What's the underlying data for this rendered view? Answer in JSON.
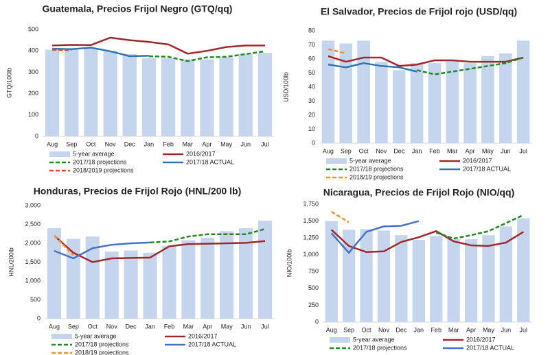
{
  "chart_data": [
    {
      "type": "bar-line",
      "title": "Guatemala, Precios Frijol Negro (GTQ/qq)",
      "y_label": "GTQ/100lb",
      "categories": [
        "Aug",
        "Sep",
        "Oct",
        "Nov",
        "Dec",
        "Jan",
        "Feb",
        "Mar",
        "Apr",
        "May",
        "Jun",
        "Jul"
      ],
      "ylim": [
        0,
        500
      ],
      "yticks": [
        0,
        100,
        200,
        300,
        400,
        500
      ],
      "grid": false,
      "series": [
        {
          "name": "5-year average",
          "kind": "bar",
          "color": "#c6d5ee",
          "values": [
            405,
            405,
            410,
            400,
            385,
            365,
            365,
            360,
            360,
            370,
            385,
            390
          ]
        },
        {
          "name": "2016/2017",
          "kind": "line",
          "color": "#a0282a",
          "values": [
            425,
            428,
            427,
            462,
            450,
            442,
            430,
            387,
            400,
            418,
            425,
            425
          ]
        },
        {
          "name": "2017/18 projections",
          "kind": "dashed",
          "color": "#1f8a1f",
          "values": [
            null,
            null,
            null,
            null,
            null,
            375,
            372,
            352,
            370,
            372,
            385,
            398
          ]
        },
        {
          "name": "2017/18 ACTUAL",
          "kind": "line",
          "color": "#2e75b6",
          "values": [
            410,
            408,
            415,
            398,
            375,
            377,
            null,
            null,
            null,
            null,
            null,
            null
          ]
        },
        {
          "name": "2018/2019 projections",
          "kind": "dashed",
          "color": "#e8462a",
          "values": [
            405,
            403,
            null,
            null,
            null,
            null,
            null,
            null,
            null,
            null,
            null,
            null
          ]
        }
      ]
    },
    {
      "type": "bar-line",
      "title": "El Salvador, Precios de Frijol rojo (USD/qq)",
      "y_label": "USD/100lb",
      "categories": [
        "Aug",
        "Sep",
        "Oct",
        "Nov",
        "Dec",
        "Jan",
        "Feb",
        "Mar",
        "Apr",
        "May",
        "Jun",
        "Jul"
      ],
      "ylim": [
        0,
        80
      ],
      "yticks": [
        0,
        10,
        20,
        30,
        40,
        50,
        60,
        70,
        80
      ],
      "grid": false,
      "series": [
        {
          "name": "5-year average",
          "kind": "bar",
          "color": "#c6d5ee",
          "values": [
            73,
            71,
            73,
            58,
            52,
            57,
            57,
            59,
            57,
            62,
            64,
            73
          ]
        },
        {
          "name": "2016/2017",
          "kind": "line",
          "color": "#a0282a",
          "values": [
            62,
            58,
            61,
            61,
            55,
            56,
            59,
            59,
            58,
            58,
            58,
            61
          ]
        },
        {
          "name": "2017/18 projections",
          "kind": "dashed",
          "color": "#1f8a1f",
          "values": [
            null,
            null,
            null,
            null,
            null,
            52,
            49,
            51,
            53,
            55,
            57,
            61
          ]
        },
        {
          "name": "2017/18 ACTUAL",
          "kind": "line",
          "color": "#2e75b6",
          "values": [
            56,
            54,
            57,
            55,
            54,
            51,
            null,
            null,
            null,
            null,
            null,
            null
          ]
        },
        {
          "name": "2018/19 projections",
          "kind": "dashed",
          "color": "#f5922a",
          "values": [
            67,
            64,
            null,
            null,
            null,
            null,
            null,
            null,
            null,
            null,
            null,
            null
          ]
        }
      ]
    },
    {
      "type": "bar-line",
      "title": "Honduras, Precios de Frijol Rojo (HNL/200 lb)",
      "y_label": "HNL/200lb",
      "categories": [
        "Aug",
        "Sep",
        "Oct",
        "Nov",
        "Dec",
        "Jan",
        "Feb",
        "Mar",
        "Apr",
        "May",
        "Jun",
        "Jul"
      ],
      "ylim": [
        0,
        3000
      ],
      "yticks": [
        0,
        500,
        {
          "value": 1000,
          "label": "1,000"
        },
        {
          "value": 1500,
          "label": "1,500"
        },
        {
          "value": 2000,
          "label": "2,000"
        },
        {
          "value": 2500,
          "label": "2,500"
        },
        {
          "value": 3000,
          "label": "3,000"
        }
      ],
      "grid": false,
      "series": [
        {
          "name": "5-year average",
          "kind": "bar",
          "color": "#c6d5ee",
          "values": [
            2400,
            2120,
            2180,
            1780,
            1810,
            1750,
            1940,
            2080,
            2150,
            2320,
            2400,
            2600
          ]
        },
        {
          "name": "2016/2017",
          "kind": "line",
          "color": "#a0282a",
          "values": [
            2200,
            1750,
            1500,
            1600,
            1610,
            1620,
            1920,
            1980,
            1990,
            2000,
            2010,
            2060
          ]
        },
        {
          "name": "2017/18 projections",
          "kind": "dashed",
          "color": "#1f8a1f",
          "values": [
            null,
            null,
            null,
            null,
            null,
            2020,
            2050,
            2180,
            2240,
            2240,
            2240,
            2380
          ]
        },
        {
          "name": "2017/18 ACTUAL",
          "kind": "line",
          "color": "#4472c4",
          "values": [
            1800,
            1600,
            1870,
            1960,
            2000,
            2020,
            null,
            null,
            null,
            null,
            null,
            null
          ]
        },
        {
          "name": "2018/19 projections",
          "kind": "dashed",
          "color": "#f5922a",
          "values": [
            2200,
            1680,
            null,
            null,
            null,
            null,
            null,
            null,
            null,
            null,
            null,
            null
          ]
        }
      ]
    },
    {
      "type": "bar-line",
      "title": "Nicaragua, Precios de Frijol Rojo (NIO/qq)",
      "y_label": "NIO/100lb",
      "categories": [
        "Aug",
        "Sep",
        "Oct",
        "Nov",
        "Dec",
        "Jan",
        "Feb",
        "Mar",
        "Apr",
        "May",
        "Jun",
        "Jul"
      ],
      "ylim": [
        0,
        1750
      ],
      "yticks": [
        0,
        250,
        500,
        750,
        {
          "value": 1000,
          "label": "1,000"
        },
        {
          "value": 1250,
          "label": "1,250"
        },
        {
          "value": 1500,
          "label": "1,500"
        },
        {
          "value": 1750,
          "label": "1,750"
        }
      ],
      "grid": false,
      "series": [
        {
          "name": "5-year average",
          "kind": "bar",
          "color": "#c6d5ee",
          "values": [
            1500,
            1370,
            1380,
            1360,
            1290,
            1220,
            1280,
            1230,
            1230,
            1290,
            1420,
            1540
          ]
        },
        {
          "name": "2016/2017",
          "kind": "line",
          "color": "#a0282a",
          "values": [
            1370,
            1130,
            1040,
            1050,
            1190,
            1260,
            1350,
            1200,
            1140,
            1130,
            1180,
            1340
          ]
        },
        {
          "name": "2017/18 projections",
          "kind": "dashed",
          "color": "#1f8a1f",
          "values": [
            null,
            null,
            null,
            null,
            null,
            null,
            1330,
            1240,
            1290,
            1350,
            1470,
            1590
          ]
        },
        {
          "name": "2017/18 ACTUAL",
          "kind": "line",
          "color": "#4472c4",
          "values": [
            1320,
            1030,
            1340,
            1420,
            1430,
            1500,
            null,
            null,
            null,
            null,
            null,
            null
          ]
        },
        {
          "kind": "dashed",
          "color": "#f5922a",
          "values": [
            1640,
            1480,
            null,
            null,
            null,
            null,
            null,
            null,
            null,
            null,
            null,
            null
          ]
        }
      ]
    }
  ]
}
